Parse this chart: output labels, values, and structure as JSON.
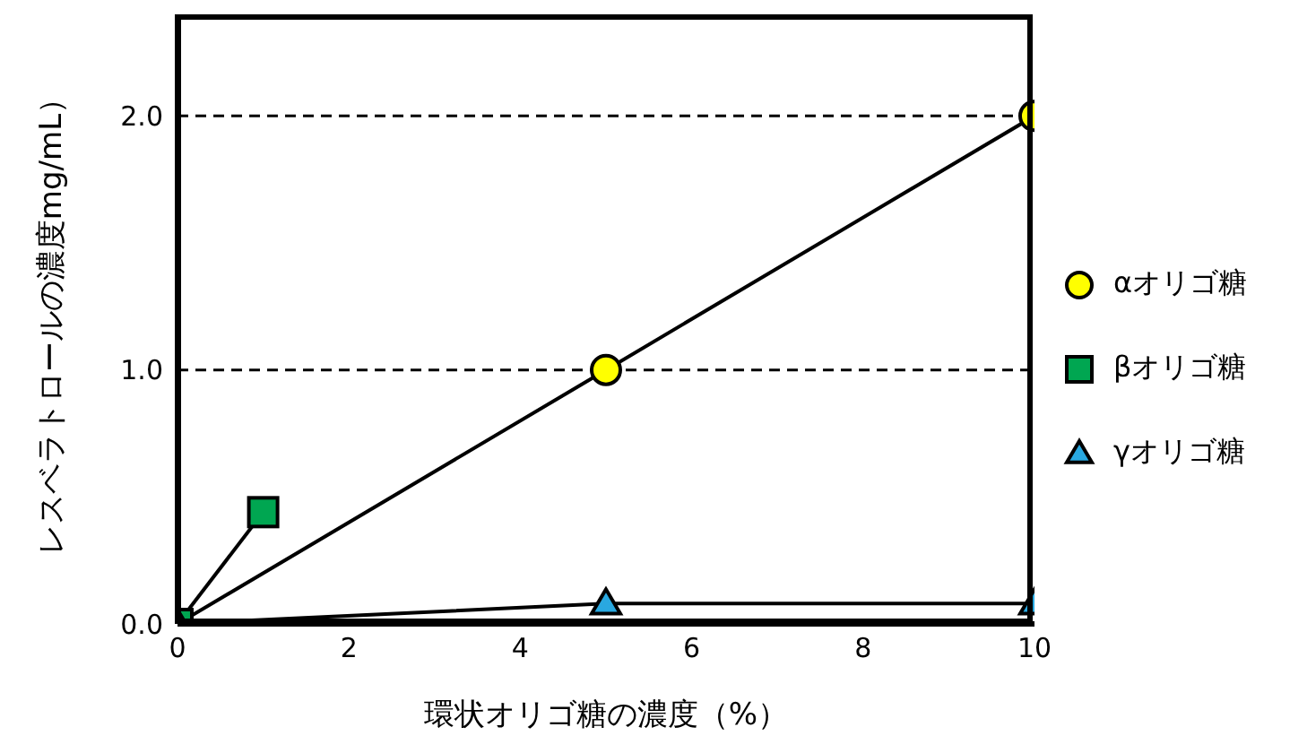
{
  "chart_data": {
    "type": "line",
    "xlabel": "環状オリゴ糖の濃度（%）",
    "ylabel": "レスベラトロールの濃度mg/mL）",
    "xlim": [
      0,
      10
    ],
    "xticks": [
      0,
      2,
      4,
      6,
      8,
      10
    ],
    "ylim": [
      0,
      2.4
    ],
    "yticks": [
      {
        "value": 0,
        "label": "0.0"
      },
      {
        "value": 1,
        "label": "1.0"
      },
      {
        "value": 2,
        "label": "2.0"
      }
    ],
    "grid": "y",
    "line_style": "solid",
    "legend": "right",
    "series": [
      {
        "name": "αオリゴ糖",
        "color": "#ffff00",
        "marker": "circle",
        "x": [
          0,
          5,
          10
        ],
        "values": [
          0,
          1,
          2
        ]
      },
      {
        "name": "βオリゴ糖",
        "color": "#00a651",
        "marker": "square",
        "x": [
          0,
          1
        ],
        "values": [
          0,
          0.44
        ]
      },
      {
        "name": "γオリゴ糖",
        "color": "#29a8e0",
        "marker": "triangle",
        "x": [
          0,
          5,
          10
        ],
        "values": [
          0,
          0.08,
          0.08
        ]
      }
    ]
  }
}
